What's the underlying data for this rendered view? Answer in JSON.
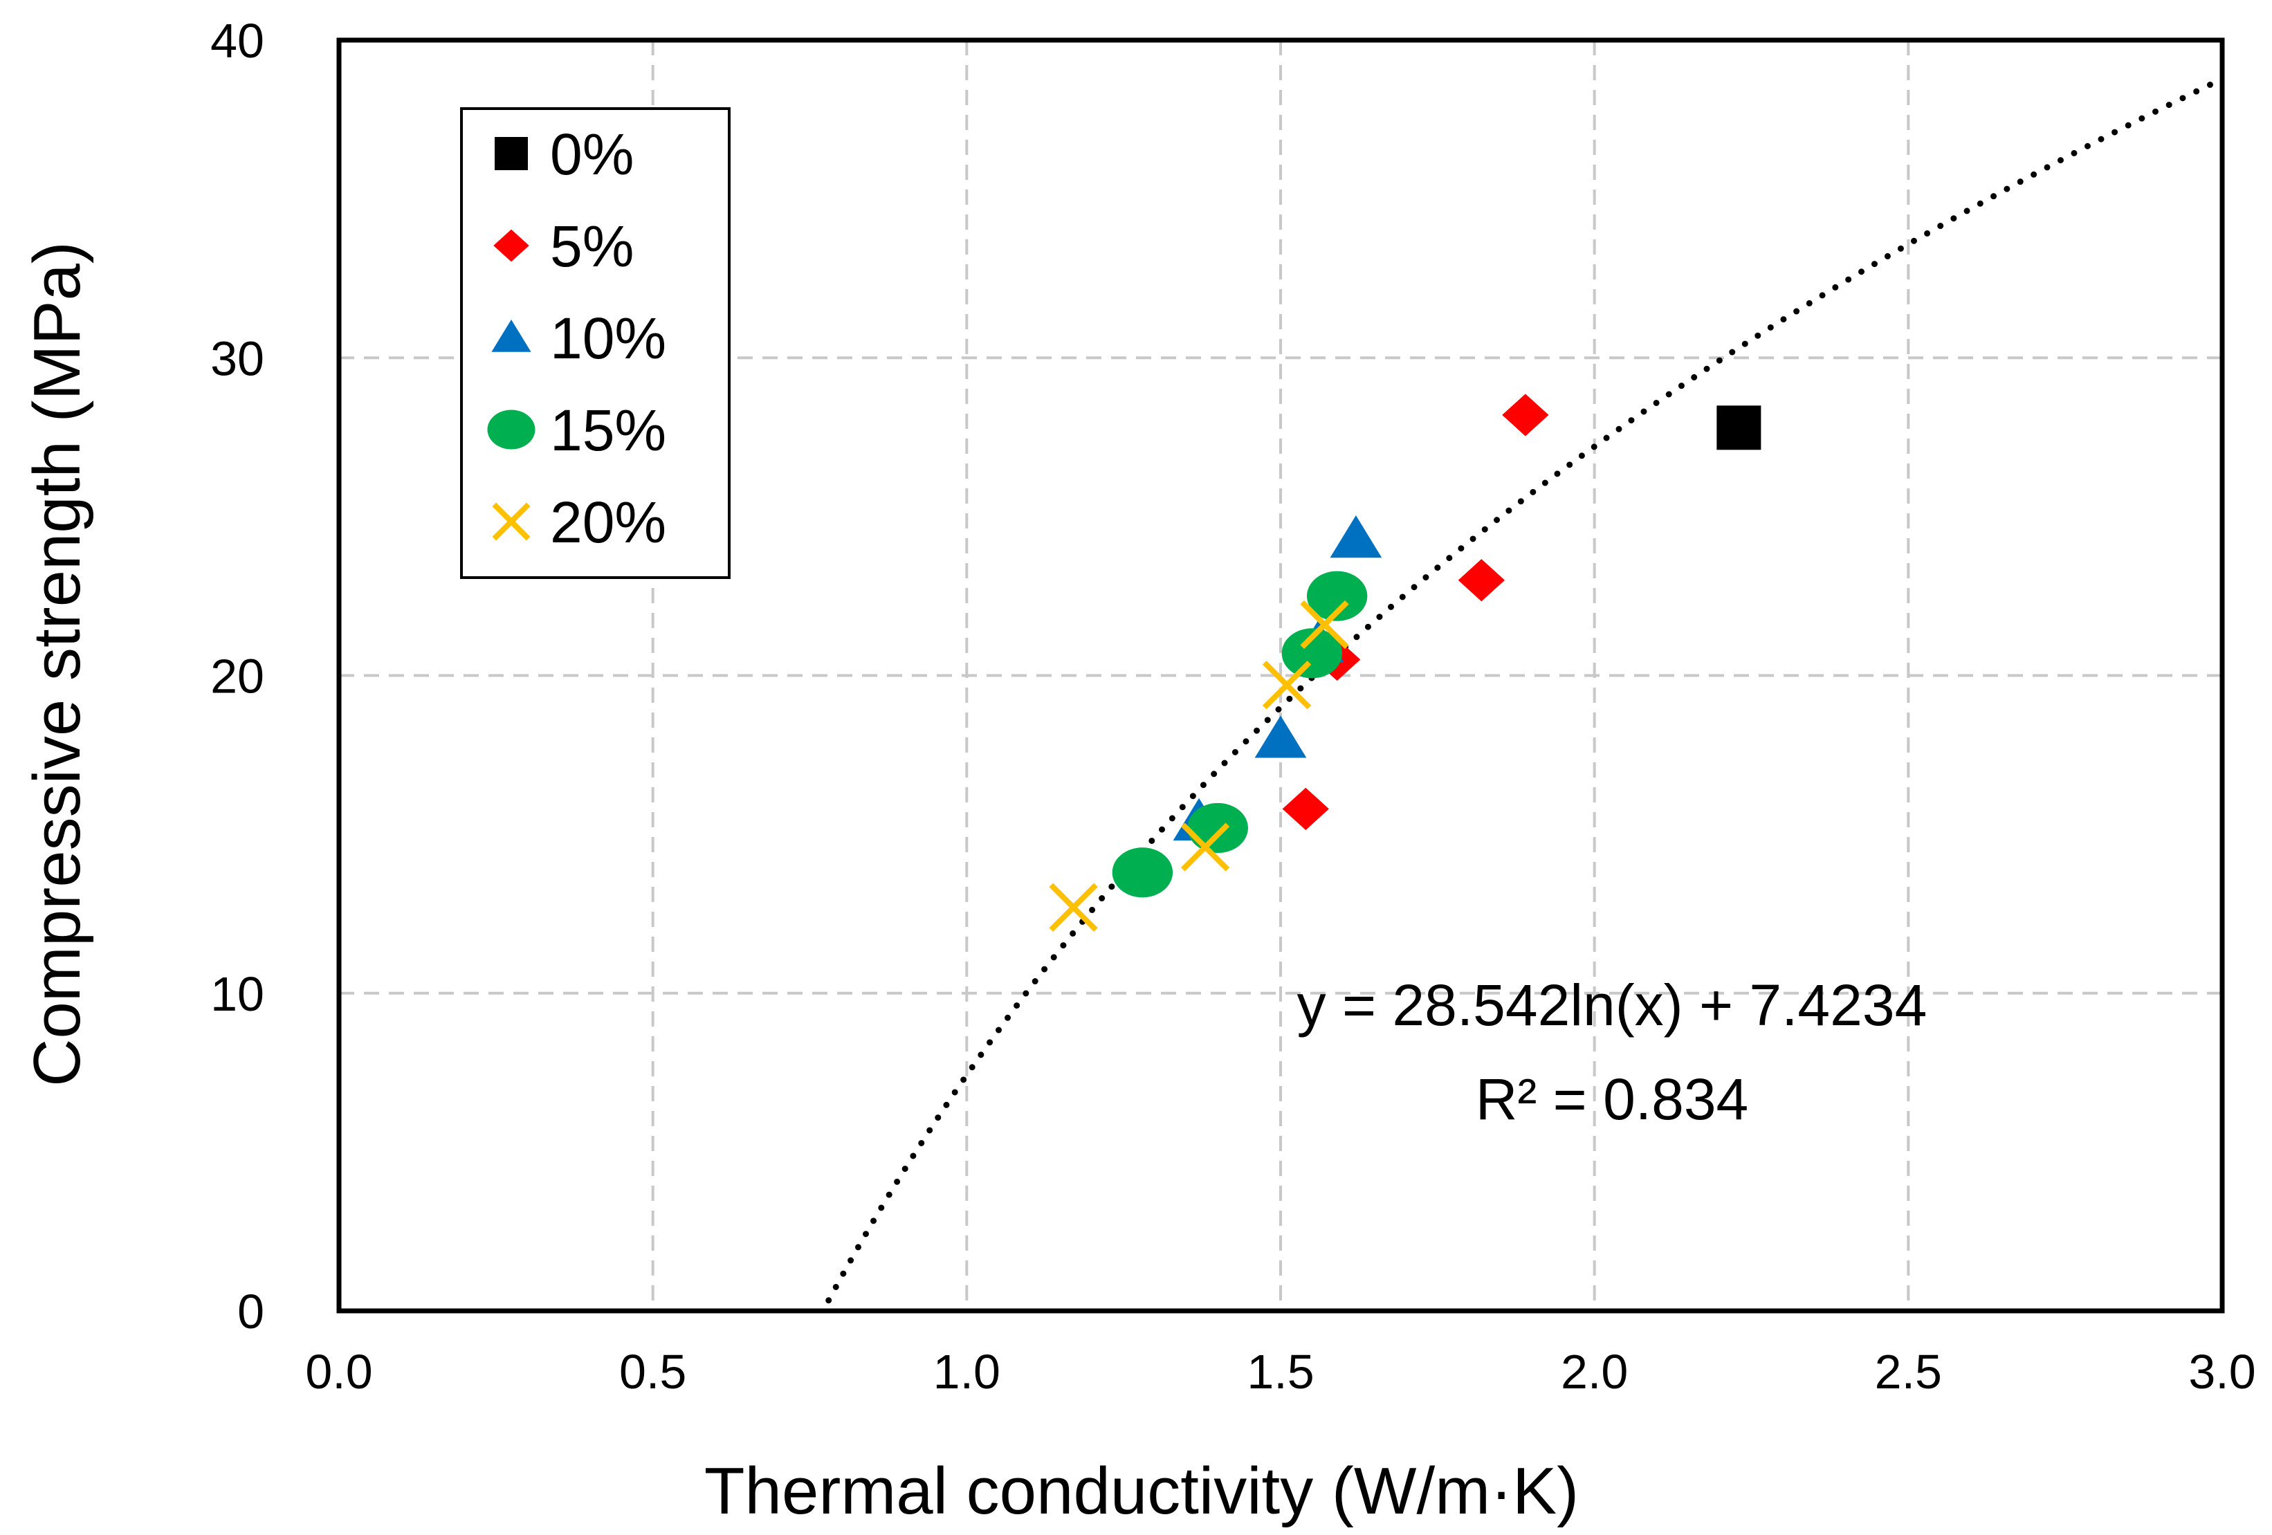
{
  "chart_data": {
    "type": "scatter",
    "title": "",
    "xlabel": "Thermal conductivity (W/m·K)",
    "ylabel": "Compressive strength (MPa)",
    "xlim": [
      0.0,
      3.0
    ],
    "ylim": [
      0,
      40
    ],
    "x_ticks": [
      "0.0",
      "0.5",
      "1.0",
      "1.5",
      "2.0",
      "2.5",
      "3.0"
    ],
    "y_ticks": [
      "0",
      "10",
      "20",
      "30",
      "40"
    ],
    "grid": true,
    "legend_position": "top-left",
    "series": [
      {
        "name": "0%",
        "marker": "square",
        "color": "#000000",
        "points": [
          {
            "x": 2.23,
            "y": 27.8
          }
        ]
      },
      {
        "name": "5%",
        "marker": "diamond",
        "color": "#ff0000",
        "points": [
          {
            "x": 1.89,
            "y": 28.2
          },
          {
            "x": 1.82,
            "y": 23.0
          },
          {
            "x": 1.59,
            "y": 20.5
          },
          {
            "x": 1.54,
            "y": 15.8
          }
        ]
      },
      {
        "name": "10%",
        "marker": "triangle",
        "color": "#0070c0",
        "points": [
          {
            "x": 1.62,
            "y": 24.3
          },
          {
            "x": 1.5,
            "y": 18.0
          },
          {
            "x": 1.37,
            "y": 15.4
          },
          {
            "x": 1.56,
            "y": 21.0
          }
        ]
      },
      {
        "name": "15%",
        "marker": "circle",
        "color": "#00b050",
        "points": [
          {
            "x": 1.59,
            "y": 22.5
          },
          {
            "x": 1.55,
            "y": 20.7
          },
          {
            "x": 1.4,
            "y": 15.2
          },
          {
            "x": 1.28,
            "y": 13.8
          }
        ]
      },
      {
        "name": "20%",
        "marker": "x",
        "color": "#ffc000",
        "points": [
          {
            "x": 1.57,
            "y": 21.6
          },
          {
            "x": 1.51,
            "y": 19.7
          },
          {
            "x": 1.38,
            "y": 14.6
          },
          {
            "x": 1.17,
            "y": 12.7
          }
        ]
      }
    ],
    "trendline": {
      "type": "logarithmic",
      "a": 28.542,
      "b": 7.4234,
      "x_range": [
        0.78,
        3.0
      ],
      "style": "dotted",
      "color": "#000000"
    },
    "annotations": {
      "equation": "y = 28.542ln(x) + 7.4234",
      "r_squared": "R² = 0.834"
    }
  }
}
